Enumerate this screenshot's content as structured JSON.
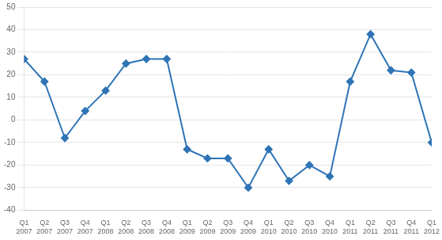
{
  "chart_data": {
    "type": "line",
    "categories": [
      "Q1\n2007",
      "Q2\n2007",
      "Q3\n2007",
      "Q4\n2007",
      "Q1\n2008",
      "Q2\n2008",
      "Q3\n2008",
      "Q4\n2008",
      "Q1\n2009",
      "Q2\n2009",
      "Q3\n2009",
      "Q4\n2009",
      "Q1\n2010",
      "Q2\n2010",
      "Q3\n2010",
      "Q4\n2010",
      "Q1\n2011",
      "Q2\n2011",
      "Q3\n2011",
      "Q4\n2011",
      "Q1\n2012"
    ],
    "values": [
      27,
      17,
      -8,
      4,
      13,
      25,
      27,
      27,
      -13,
      -17,
      -17,
      -30,
      -13,
      -27,
      -20,
      -25,
      17,
      38,
      22,
      21,
      -10
    ],
    "color": "#2E74B5",
    "marker": "diamond",
    "line_style": "solid",
    "ylim": [
      -40,
      50
    ],
    "yticks": [
      -40,
      -30,
      -20,
      -10,
      0,
      10,
      20,
      30,
      40,
      50
    ],
    "grid": true
  }
}
